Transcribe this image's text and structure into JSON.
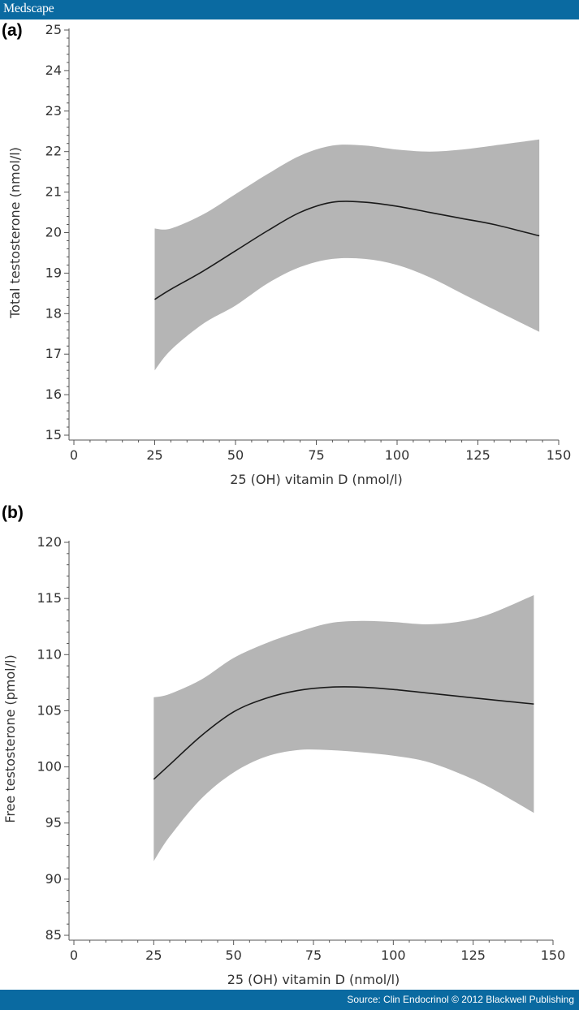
{
  "header": {
    "logo_text": "Medscape"
  },
  "footer": {
    "source_text": "Source: Clin Endocrinol © 2012 Blackwell Publishing"
  },
  "colors": {
    "brand_bar": "#0a6aa1",
    "band_fill": "#b5b5b5",
    "line": "#1a1a1a",
    "axis": "#555555"
  },
  "chart_data": [
    {
      "panel_label": "(a)",
      "type": "line",
      "xlabel": "25 (OH) vitamin D (nmol/l)",
      "ylabel": "Total testosterone (nmol/l)",
      "xlim": [
        0,
        150
      ],
      "ylim": [
        15,
        25
      ],
      "x_ticks": [
        0,
        25,
        50,
        75,
        100,
        125,
        150
      ],
      "y_ticks": [
        15,
        16,
        17,
        18,
        19,
        20,
        21,
        22,
        23,
        24,
        25
      ],
      "x": [
        25,
        30,
        40,
        50,
        60,
        70,
        80,
        90,
        100,
        110,
        120,
        130,
        144
      ],
      "estimate": [
        18.35,
        18.6,
        19.05,
        19.55,
        20.05,
        20.5,
        20.75,
        20.75,
        20.65,
        20.5,
        20.35,
        20.2,
        19.92
      ],
      "ci_lower": [
        16.6,
        17.1,
        17.75,
        18.2,
        18.75,
        19.15,
        19.35,
        19.35,
        19.2,
        18.9,
        18.5,
        18.1,
        17.55
      ],
      "ci_upper": [
        20.1,
        20.1,
        20.45,
        20.95,
        21.45,
        21.9,
        22.15,
        22.15,
        22.05,
        22.0,
        22.05,
        22.15,
        22.3
      ]
    },
    {
      "panel_label": "(b)",
      "type": "line",
      "xlabel": "25 (OH) vitamin D (nmol/l)",
      "ylabel": "Free testosterone (pmol/l)",
      "xlim": [
        0,
        150
      ],
      "ylim": [
        85,
        120
      ],
      "x_ticks": [
        0,
        25,
        50,
        75,
        100,
        125,
        150
      ],
      "y_ticks": [
        85,
        90,
        95,
        100,
        105,
        110,
        115,
        120
      ],
      "x": [
        25,
        30,
        40,
        50,
        60,
        70,
        80,
        90,
        100,
        110,
        120,
        130,
        144
      ],
      "estimate": [
        98.9,
        100.2,
        102.8,
        104.9,
        106.1,
        106.8,
        107.1,
        107.1,
        106.9,
        106.6,
        106.3,
        106.0,
        105.6
      ],
      "ci_lower": [
        91.6,
        93.8,
        97.2,
        99.5,
        100.9,
        101.5,
        101.5,
        101.3,
        101.0,
        100.5,
        99.5,
        98.2,
        95.9
      ],
      "ci_upper": [
        106.2,
        106.5,
        107.8,
        109.7,
        111.0,
        112.0,
        112.8,
        113.0,
        112.9,
        112.7,
        112.9,
        113.6,
        115.3
      ]
    }
  ]
}
